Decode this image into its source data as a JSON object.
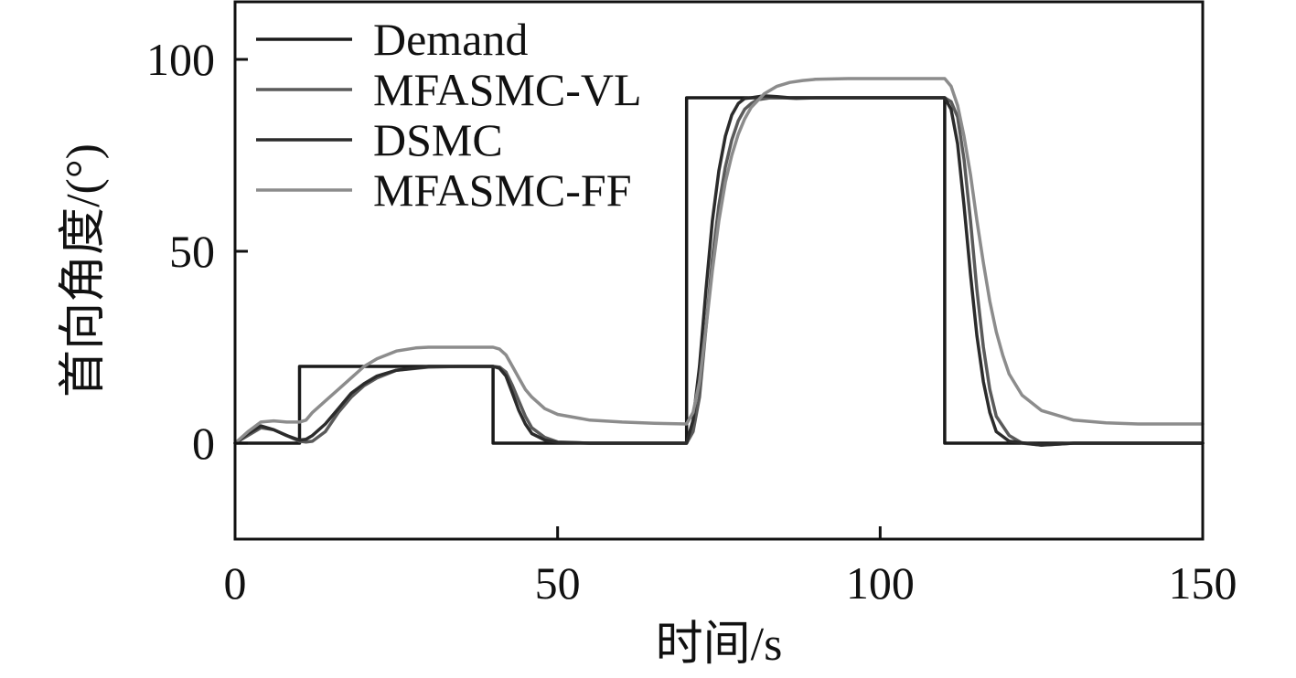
{
  "chart_data": {
    "type": "line",
    "xlabel": "时间/s",
    "ylabel": "首向角度/(°)",
    "xlim": [
      0,
      150
    ],
    "ylim": [
      -25,
      115
    ],
    "xticks": [
      0,
      50,
      100,
      150
    ],
    "yticks": [
      0,
      50,
      100
    ],
    "grid": false,
    "legend_position": "top-left",
    "series": [
      {
        "name": "Demand",
        "color": "#1a1a1a",
        "x": [
          0,
          10,
          10,
          40,
          40,
          70,
          70,
          110,
          110,
          150
        ],
        "y": [
          0,
          0,
          20,
          20,
          0,
          0,
          90,
          90,
          0,
          0
        ]
      },
      {
        "name": "MFASMC-VL",
        "color": "#5a5a5a",
        "x": [
          0,
          2,
          4,
          6,
          8,
          10,
          11,
          12,
          14,
          16,
          18,
          20,
          22,
          25,
          30,
          35,
          40,
          41,
          42,
          43,
          44,
          45,
          46,
          48,
          50,
          55,
          60,
          65,
          70,
          71,
          72,
          73,
          74,
          75,
          76,
          77,
          78,
          79,
          80,
          81,
          83,
          85,
          87,
          90,
          95,
          100,
          105,
          110,
          111,
          112,
          113,
          114,
          115,
          116,
          117,
          118,
          120,
          122,
          125,
          130,
          140,
          150
        ],
        "y": [
          0,
          2,
          4,
          3.5,
          2,
          0.5,
          0.3,
          0.5,
          3,
          8,
          12,
          15,
          17,
          19,
          19.8,
          20,
          20,
          19.8,
          18.5,
          15,
          11,
          7,
          4,
          1.5,
          0.3,
          0,
          0,
          0,
          0,
          3,
          12,
          30,
          48,
          62,
          72,
          79,
          84,
          87,
          88.5,
          89.5,
          90,
          90,
          89.8,
          90,
          90,
          90,
          90,
          90,
          89,
          85,
          74,
          58,
          40,
          25,
          14,
          7,
          2,
          0,
          -0.5,
          0,
          0,
          0
        ]
      },
      {
        "name": "DSMC",
        "color": "#2b2b2b",
        "x": [
          0,
          2,
          4,
          6,
          8,
          10,
          11,
          12,
          14,
          16,
          18,
          20,
          22,
          25,
          30,
          35,
          40,
          41,
          42,
          43,
          44,
          45,
          46,
          48,
          50,
          55,
          60,
          65,
          70,
          71,
          72,
          73,
          74,
          75,
          76,
          77,
          78,
          79,
          80,
          82,
          84,
          86,
          90,
          95,
          100,
          105,
          110,
          111,
          112,
          113,
          114,
          115,
          116,
          117,
          118,
          120,
          125,
          130,
          140,
          150
        ],
        "y": [
          0,
          2.5,
          4.5,
          3.5,
          2,
          0.8,
          1,
          2,
          5,
          9,
          13,
          15.5,
          17.5,
          19,
          20,
          20,
          20,
          19.5,
          17.5,
          13,
          8.5,
          5,
          2.5,
          0.8,
          0.2,
          0,
          0,
          0,
          0,
          6,
          20,
          40,
          58,
          71,
          80,
          85.5,
          88.5,
          89.8,
          90,
          90.5,
          90.3,
          90,
          90,
          90,
          90,
          90,
          90,
          87,
          78,
          62,
          44,
          28,
          16,
          8,
          3,
          0.5,
          -0.5,
          0,
          0,
          0
        ]
      },
      {
        "name": "MFASMC-FF",
        "color": "#8c8c8c",
        "x": [
          0,
          2,
          4,
          6,
          8,
          10,
          11,
          12,
          14,
          16,
          18,
          20,
          22,
          25,
          28,
          30,
          35,
          40,
          41,
          42,
          43,
          44,
          45,
          46,
          48,
          50,
          55,
          60,
          65,
          70,
          71,
          72,
          73,
          74,
          75,
          76,
          77,
          78,
          79,
          80,
          82,
          84,
          86,
          88,
          90,
          95,
          100,
          105,
          110,
          111,
          112,
          113,
          114,
          115,
          116,
          117,
          118,
          119,
          120,
          122,
          125,
          130,
          135,
          140,
          150
        ],
        "y": [
          0,
          3,
          5.5,
          5.8,
          5.5,
          5.5,
          6,
          8,
          11,
          14,
          17,
          20,
          22,
          24,
          24.8,
          25,
          25,
          25,
          24.5,
          23,
          20,
          17,
          14,
          12,
          9,
          7.5,
          6,
          5.5,
          5.2,
          5,
          8,
          16,
          30,
          45,
          58,
          68,
          75,
          80.5,
          84.5,
          87.5,
          91,
          93,
          94,
          94.5,
          94.8,
          95,
          95,
          95,
          95,
          93,
          88,
          80,
          70,
          58,
          47,
          37,
          29,
          23,
          18,
          12.5,
          8.5,
          6,
          5.3,
          5,
          5
        ]
      }
    ]
  }
}
